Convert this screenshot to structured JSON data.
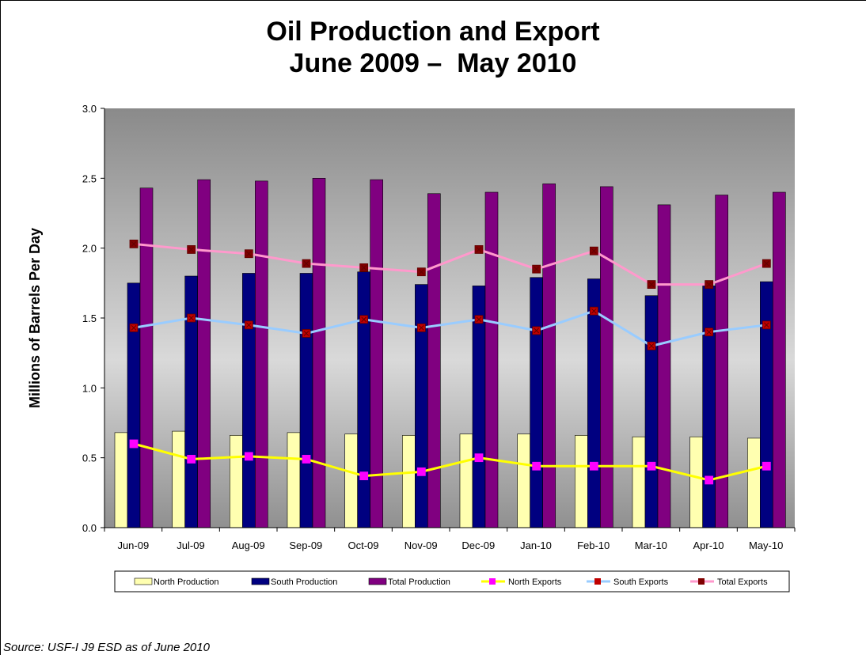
{
  "title_line1": "Oil Production and Export",
  "title_line2": "June 2009 –  May 2010",
  "source": "Source:  USF-I J9 ESD as of June 2010",
  "colors": {
    "north_production": "#FFFFB0",
    "south_production": "#000080",
    "total_production": "#800080",
    "north_exports_line": "#FFFF00",
    "north_exports_marker": "#FF00FF",
    "south_exports_line": "#99CCFF",
    "south_exports_marker": "#C00000",
    "total_exports_line": "#FF99CC",
    "total_exports_marker": "#800000"
  },
  "chart_data": {
    "type": "bar",
    "categories": [
      "Jun-09",
      "Jul-09",
      "Aug-09",
      "Sep-09",
      "Oct-09",
      "Nov-09",
      "Dec-09",
      "Jan-10",
      "Feb-10",
      "Mar-10",
      "Apr-10",
      "May-10"
    ],
    "ylabel": "Millions of Barrels Per Day",
    "ylim": [
      0,
      3.0
    ],
    "yticks": [
      "0.0",
      "0.5",
      "1.0",
      "1.5",
      "2.0",
      "2.5",
      "3.0"
    ],
    "grid": false,
    "legend_position": "bottom",
    "series": [
      {
        "name": "North Production",
        "kind": "bar",
        "values": [
          0.68,
          0.69,
          0.66,
          0.68,
          0.67,
          0.66,
          0.67,
          0.67,
          0.66,
          0.65,
          0.65,
          0.64
        ]
      },
      {
        "name": "South Production",
        "kind": "bar",
        "values": [
          1.75,
          1.8,
          1.82,
          1.82,
          1.83,
          1.74,
          1.73,
          1.79,
          1.78,
          1.66,
          1.73,
          1.76
        ]
      },
      {
        "name": "Total Production",
        "kind": "bar",
        "values": [
          2.43,
          2.49,
          2.48,
          2.5,
          2.49,
          2.39,
          2.4,
          2.46,
          2.44,
          2.31,
          2.38,
          2.4
        ]
      },
      {
        "name": "North Exports",
        "kind": "line",
        "values": [
          0.6,
          0.49,
          0.51,
          0.49,
          0.37,
          0.4,
          0.5,
          0.44,
          0.44,
          0.44,
          0.34,
          0.44
        ]
      },
      {
        "name": "South Exports",
        "kind": "line",
        "values": [
          1.43,
          1.5,
          1.45,
          1.39,
          1.49,
          1.43,
          1.49,
          1.41,
          1.55,
          1.3,
          1.4,
          1.45
        ]
      },
      {
        "name": "Total Exports",
        "kind": "line",
        "values": [
          2.03,
          1.99,
          1.96,
          1.89,
          1.86,
          1.83,
          1.99,
          1.85,
          1.98,
          1.74,
          1.74,
          1.89
        ]
      }
    ]
  }
}
